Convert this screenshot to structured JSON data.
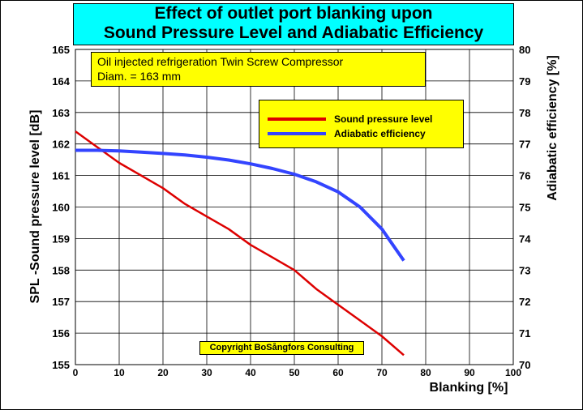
{
  "chart_data": {
    "type": "line",
    "title_lines": [
      "Effect of outlet port blanking upon",
      "Sound Pressure Level and Adiabatic Efficiency"
    ],
    "info_lines": [
      "Oil injected refrigeration Twin Screw Compressor",
      "Diam. = 163 mm"
    ],
    "xlabel": "Blanking [%]",
    "ylabel_left": "SPL -Sound pressure level  [dB]",
    "ylabel_right": "Adiabatic efficiency [%]",
    "xlim": [
      0,
      100
    ],
    "ylim_left": [
      155,
      165
    ],
    "ylim_right": [
      70,
      80
    ],
    "x_ticks": [
      "0",
      "10",
      "20",
      "30",
      "40",
      "50",
      "60",
      "70",
      "80",
      "90",
      "100"
    ],
    "y_left_ticks": [
      "155",
      "156",
      "157",
      "158",
      "159",
      "160",
      "161",
      "162",
      "163",
      "164",
      "165"
    ],
    "y_right_ticks": [
      "70",
      "71",
      "72",
      "73",
      "74",
      "75",
      "76",
      "77",
      "78",
      "79",
      "80"
    ],
    "grid": true,
    "legend_position": "upper-right",
    "series": [
      {
        "name": "Sound pressure level",
        "color": "#dd0000",
        "axis": "left",
        "x": [
          0,
          5,
          10,
          15,
          20,
          25,
          30,
          35,
          40,
          45,
          50,
          55,
          60,
          65,
          70,
          75
        ],
        "y": [
          162.4,
          161.9,
          161.4,
          161.0,
          160.6,
          160.1,
          159.7,
          159.3,
          158.8,
          158.4,
          158.0,
          157.4,
          156.9,
          156.4,
          155.9,
          155.3
        ]
      },
      {
        "name": "Adiabatic efficiency",
        "color": "#3344ff",
        "axis": "right",
        "x": [
          0,
          5,
          10,
          15,
          20,
          25,
          30,
          35,
          40,
          45,
          50,
          55,
          60,
          65,
          70,
          72,
          75
        ],
        "y": [
          76.8,
          76.8,
          76.78,
          76.74,
          76.7,
          76.65,
          76.58,
          76.49,
          76.37,
          76.22,
          76.04,
          75.8,
          75.48,
          75.0,
          74.3,
          73.9,
          73.3
        ]
      }
    ],
    "copyright": "Copyright BoSångfors Consulting"
  }
}
